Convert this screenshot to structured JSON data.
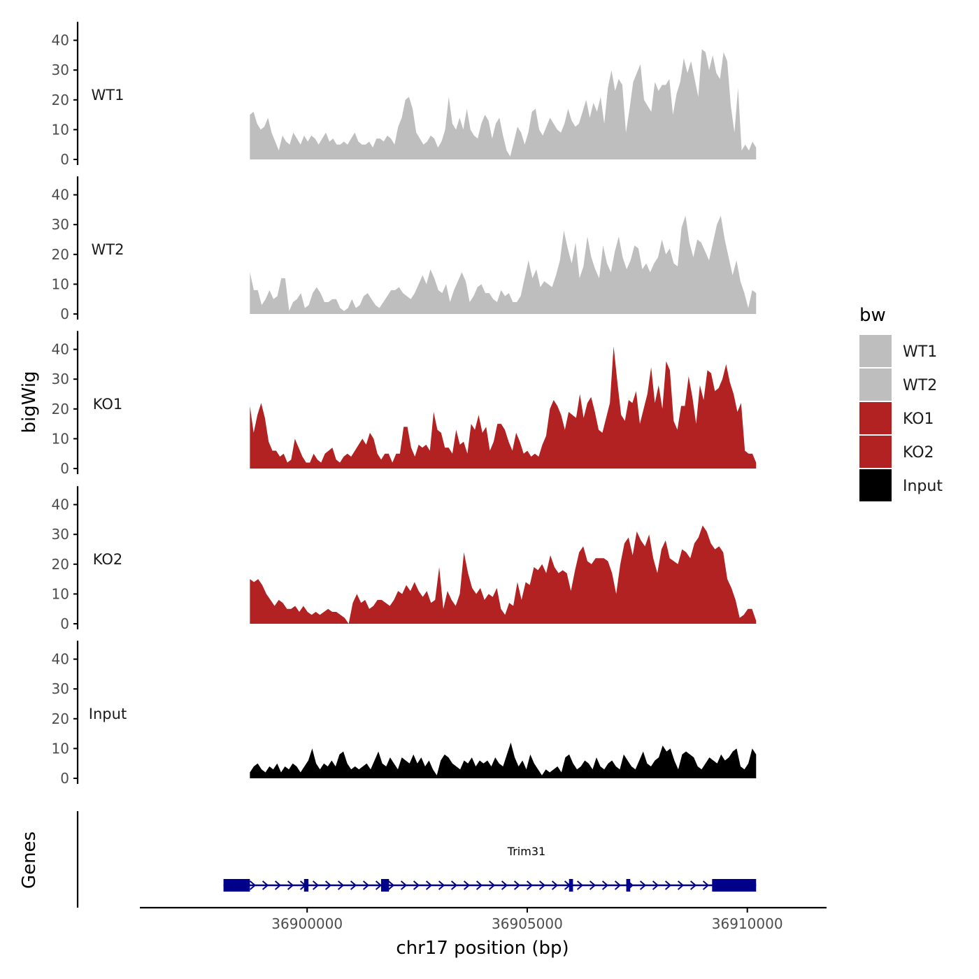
{
  "colors": {
    "wt": "#bebebe",
    "ko": "#b22222",
    "input": "#000000",
    "gene": "#00008b",
    "axis": "#000000"
  },
  "chart_data": {
    "type": "area",
    "title": "",
    "xlabel": "chr17 position (bp)",
    "ylabel": "bigWig",
    "genes_label": "Genes",
    "xlim": [
      36896200,
      36911800
    ],
    "ylim": [
      0,
      45
    ],
    "x_range_data": [
      36898700,
      36910200
    ],
    "x_ticks": [
      36900000,
      36905000,
      36910000
    ],
    "x_tick_labels": [
      "36900000",
      "36905000",
      "36910000"
    ],
    "y_ticks": [
      0,
      10,
      20,
      30,
      40
    ],
    "y_tick_labels": [
      "0",
      "10",
      "20",
      "30",
      "40"
    ],
    "legend": {
      "title": "bw",
      "entries": [
        {
          "label": "WT1",
          "color": "#bebebe"
        },
        {
          "label": "WT2",
          "color": "#bebebe"
        },
        {
          "label": "KO1",
          "color": "#b22222"
        },
        {
          "label": "KO2",
          "color": "#b22222"
        },
        {
          "label": "Input",
          "color": "#000000"
        }
      ]
    },
    "series": [
      {
        "name": "WT1",
        "color": "#bebebe",
        "values": [
          15,
          16,
          12,
          10,
          11,
          14,
          9,
          6,
          3,
          8,
          6,
          5,
          9,
          7,
          5,
          8,
          6,
          8,
          7,
          5,
          7,
          9,
          6,
          7,
          5,
          5,
          6,
          5,
          7,
          9,
          6,
          5,
          5,
          6,
          4,
          7,
          7,
          6,
          8,
          7,
          5,
          11,
          14,
          20,
          21,
          17,
          9,
          7,
          5,
          6,
          8,
          7,
          4,
          6,
          10,
          21,
          12,
          10,
          14,
          10,
          17,
          10,
          8,
          7,
          12,
          15,
          13,
          7,
          12,
          14,
          8,
          3,
          1,
          6,
          11,
          9,
          5,
          9,
          16,
          17,
          10,
          8,
          11,
          14,
          12,
          10,
          9,
          12,
          17,
          13,
          11,
          12,
          16,
          20,
          14,
          19,
          16,
          21,
          12,
          24,
          30,
          23,
          27,
          25,
          9,
          17,
          26,
          29,
          32,
          20,
          18,
          16,
          26,
          23,
          25,
          25,
          27,
          15,
          22,
          26,
          34,
          29,
          33,
          27,
          21,
          37,
          36,
          30,
          35,
          29,
          27,
          36,
          33,
          18,
          9,
          24,
          3,
          5,
          3,
          6,
          4
        ]
      },
      {
        "name": "WT2",
        "color": "#bebebe",
        "values": [
          14,
          8,
          8,
          3,
          5,
          8,
          5,
          6,
          12,
          12,
          1,
          4,
          5,
          7,
          2,
          3,
          7,
          9,
          7,
          4,
          4,
          5,
          5,
          2,
          1,
          2,
          5,
          2,
          3,
          6,
          7,
          5,
          3,
          2,
          4,
          6,
          8,
          8,
          9,
          7,
          6,
          5,
          7,
          10,
          13,
          10,
          15,
          12,
          8,
          7,
          10,
          4,
          8,
          11,
          14,
          11,
          4,
          6,
          9,
          10,
          7,
          7,
          5,
          4,
          8,
          6,
          7,
          4,
          4,
          6,
          12,
          18,
          12,
          15,
          9,
          11,
          10,
          9,
          13,
          18,
          28,
          22,
          17,
          24,
          12,
          16,
          26,
          19,
          15,
          12,
          23,
          17,
          14,
          21,
          26,
          19,
          15,
          18,
          23,
          22,
          15,
          17,
          14,
          17,
          19,
          25,
          20,
          22,
          17,
          16,
          29,
          33,
          24,
          19,
          25,
          24,
          21,
          18,
          24,
          30,
          33,
          25,
          19,
          13,
          18,
          11,
          7,
          2,
          8,
          7
        ]
      },
      {
        "name": "KO1",
        "color": "#b22222",
        "values": [
          21,
          12,
          18,
          22,
          17,
          9,
          6,
          6,
          4,
          5,
          2,
          3,
          10,
          7,
          4,
          2,
          2,
          5,
          3,
          2,
          5,
          6,
          7,
          3,
          2,
          4,
          5,
          4,
          6,
          8,
          10,
          8,
          12,
          10,
          5,
          3,
          5,
          5,
          2,
          5,
          5,
          14,
          14,
          7,
          4,
          8,
          7,
          8,
          6,
          19,
          13,
          12,
          7,
          7,
          5,
          13,
          8,
          9,
          5,
          15,
          13,
          18,
          12,
          14,
          6,
          9,
          15,
          15,
          13,
          9,
          6,
          12,
          9,
          5,
          6,
          4,
          5,
          4,
          8,
          11,
          20,
          23,
          21,
          18,
          13,
          19,
          18,
          17,
          25,
          17,
          22,
          24,
          19,
          13,
          12,
          17,
          22,
          41,
          29,
          18,
          16,
          23,
          22,
          26,
          15,
          20,
          25,
          34,
          22,
          28,
          20,
          36,
          33,
          16,
          13,
          21,
          21,
          31,
          24,
          15,
          28,
          23,
          33,
          32,
          26,
          27,
          30,
          35,
          29,
          25,
          19,
          22,
          6,
          5,
          5,
          2
        ]
      },
      {
        "name": "KO2",
        "color": "#b22222",
        "values": [
          15,
          14,
          15,
          13,
          10,
          8,
          6,
          8,
          7,
          5,
          5,
          6,
          4,
          6,
          4,
          3,
          4,
          3,
          4,
          5,
          4,
          4,
          3,
          2,
          0,
          7,
          10,
          7,
          8,
          5,
          6,
          8,
          8,
          7,
          6,
          8,
          11,
          10,
          13,
          11,
          14,
          11,
          9,
          11,
          7,
          8,
          19,
          5,
          11,
          8,
          6,
          10,
          24,
          17,
          12,
          10,
          12,
          8,
          10,
          9,
          12,
          5,
          3,
          7,
          6,
          14,
          8,
          14,
          13,
          19,
          18,
          20,
          17,
          23,
          19,
          17,
          18,
          17,
          11,
          18,
          24,
          26,
          21,
          20,
          22,
          22,
          22,
          21,
          17,
          10,
          20,
          27,
          29,
          23,
          31,
          28,
          26,
          30,
          22,
          17,
          25,
          28,
          22,
          21,
          20,
          25,
          24,
          22,
          27,
          29,
          33,
          31,
          27,
          25,
          26,
          24,
          15,
          12,
          8,
          2,
          3,
          5,
          5,
          1
        ]
      },
      {
        "name": "Input",
        "color": "#000000",
        "values": [
          2,
          4,
          5,
          3,
          2,
          4,
          3,
          5,
          2,
          4,
          3,
          5,
          4,
          2,
          4,
          6,
          10,
          5,
          3,
          5,
          4,
          6,
          4,
          8,
          9,
          5,
          3,
          4,
          3,
          4,
          5,
          3,
          6,
          9,
          5,
          4,
          7,
          5,
          3,
          7,
          6,
          5,
          8,
          5,
          7,
          4,
          6,
          3,
          1,
          6,
          8,
          7,
          5,
          4,
          3,
          6,
          5,
          7,
          4,
          6,
          5,
          6,
          4,
          7,
          5,
          4,
          8,
          12,
          7,
          4,
          6,
          3,
          8,
          5,
          3,
          1,
          3,
          2,
          3,
          4,
          2,
          7,
          8,
          5,
          3,
          4,
          6,
          5,
          3,
          7,
          4,
          3,
          5,
          6,
          4,
          3,
          8,
          6,
          4,
          3,
          6,
          9,
          5,
          4,
          6,
          7,
          11,
          9,
          10,
          6,
          3,
          8,
          9,
          8,
          7,
          4,
          3,
          5,
          7,
          6,
          5,
          8,
          6,
          7,
          9,
          10,
          4,
          3,
          5,
          10,
          8
        ]
      }
    ],
    "gene": {
      "name": "Trim31",
      "start": 36898100,
      "end": 36910200,
      "strand": "+",
      "exons": [
        [
          36898100,
          36898700
        ],
        [
          36899930,
          36900030
        ],
        [
          36901680,
          36901860
        ],
        [
          36905950,
          36906040
        ],
        [
          36907250,
          36907340
        ],
        [
          36909200,
          36910200
        ]
      ]
    }
  }
}
